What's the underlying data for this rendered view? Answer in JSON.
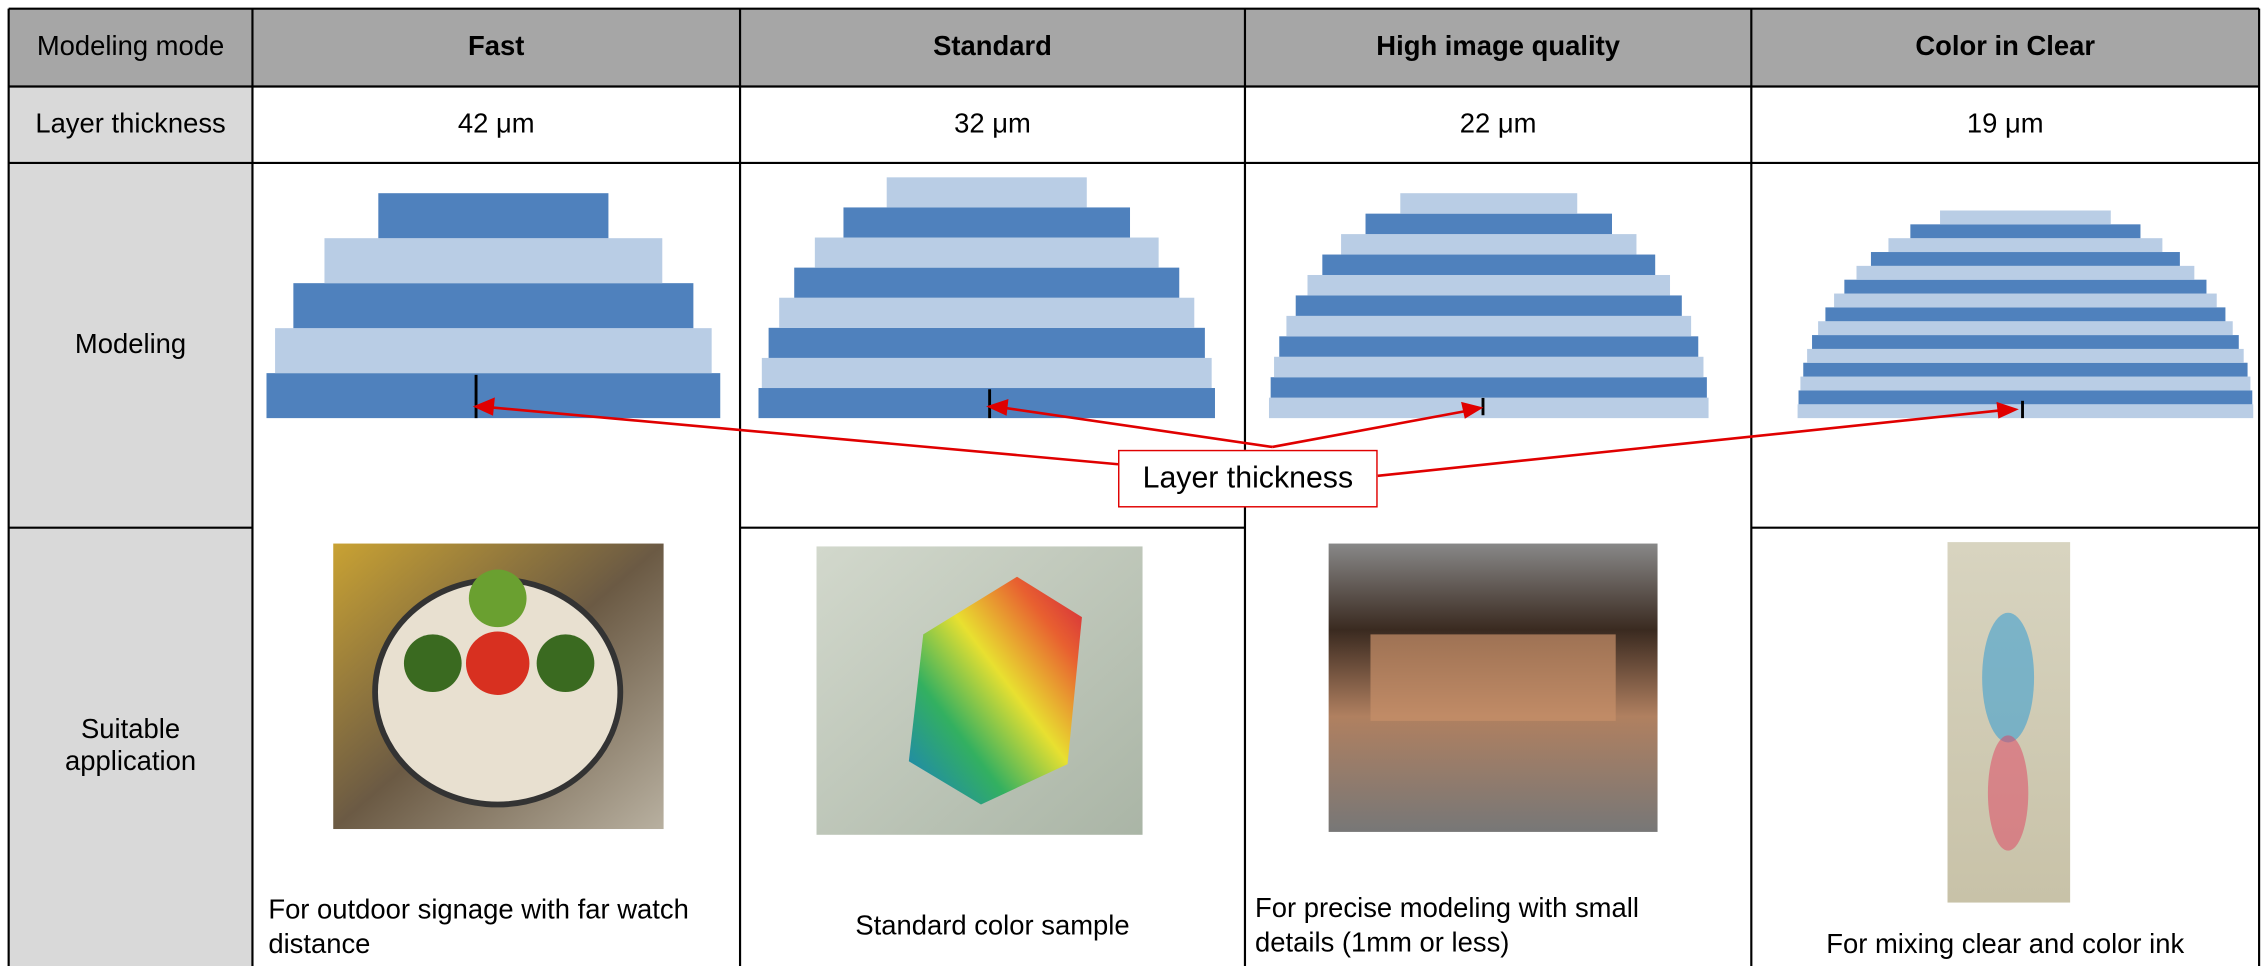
{
  "table": {
    "header": [
      "Modeling mode",
      "Fast",
      "Standard",
      "High image quality",
      "Color in Clear"
    ],
    "rows": [
      [
        "Layer thickness",
        "42 μm",
        "32 μm",
        "22 μm",
        "19 μm"
      ],
      [
        "Modeling"
      ],
      [
        "Suitable application",
        "For outdoor signage with far watch distance",
        "Standard color sample",
        "For precise modeling with small details (1mm or less)",
        "For mixing clear and color ink"
      ]
    ]
  },
  "annotation": "Layer thickness"
}
